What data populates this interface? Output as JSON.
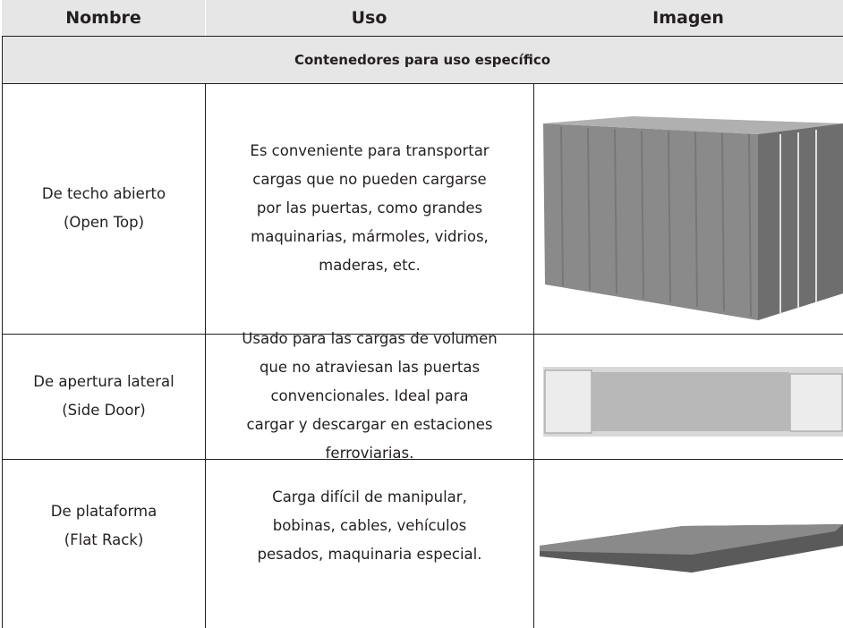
{
  "table": {
    "headers": [
      "Nombre",
      "Uso",
      "Imagen"
    ],
    "section": "Contenedores para uso específico",
    "rows": [
      {
        "name": [
          "De techo abierto",
          "(Open Top)"
        ],
        "use": [
          "Es conveniente para transportar",
          "cargas que no pueden cargarse",
          "por las puertas, como grandes",
          "maquinarias, mármoles, vidrios,",
          "maderas, etc."
        ]
      },
      {
        "name": [
          "De apertura lateral",
          "(Side Door)"
        ],
        "use": [
          "Usado para las cargas de volumen",
          "que no atraviesan las puertas",
          "convencionales. Ideal para",
          "cargar y descargar en estaciones",
          "ferroviarias."
        ]
      },
      {
        "name": [
          "De plataforma",
          "(Flat Rack)"
        ],
        "use": [
          "Carga difícil de manipular,",
          "bobinas, cables, vehículos",
          "pesados, maquinaria especial."
        ]
      }
    ]
  }
}
